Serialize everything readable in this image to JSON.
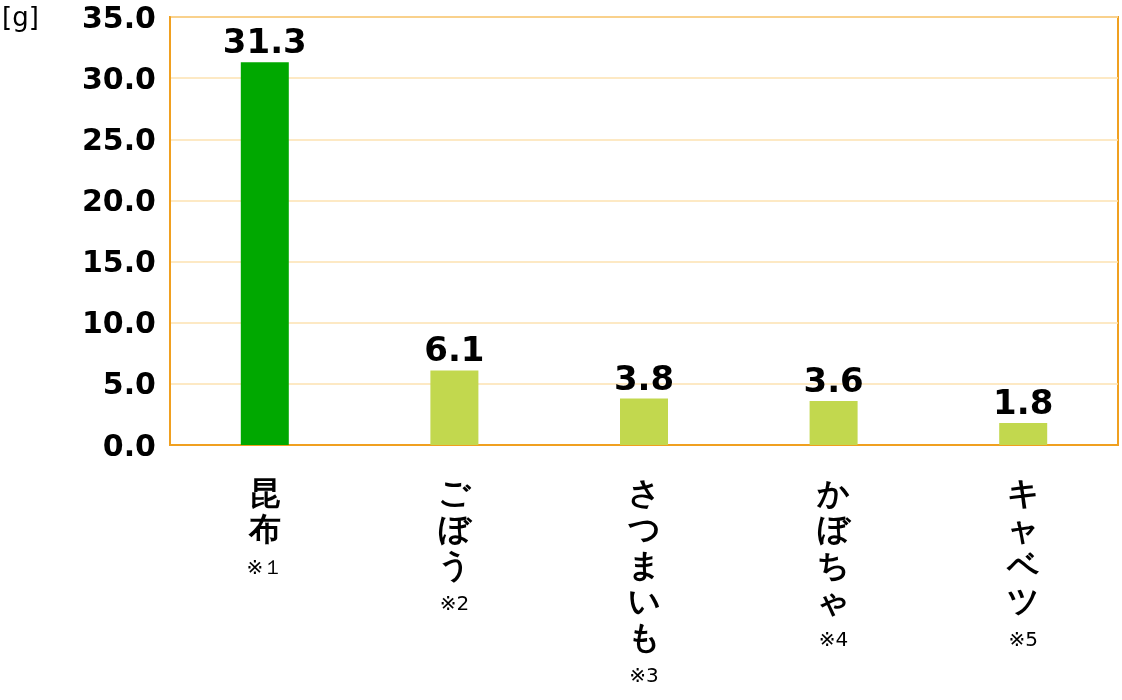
{
  "chart_data": {
    "type": "bar",
    "ylabel": "[g]",
    "categories": [
      "昆布\n※１",
      "ごぼう\n※2",
      "さつまいも\n※3",
      "かぼちゃ\n※4",
      "キャベツ\n※5"
    ],
    "values": [
      31.3,
      6.1,
      3.8,
      3.6,
      1.8
    ],
    "colors": [
      "#00a800",
      "#c2d84e",
      "#c2d84e",
      "#c2d84e",
      "#c2d84e"
    ],
    "ylim": [
      0,
      35
    ],
    "yticks": [
      {
        "value": 0,
        "label": "0.0"
      },
      {
        "value": 5,
        "label": "5.0"
      },
      {
        "value": 10,
        "label": "10.0"
      },
      {
        "value": 15,
        "label": "15.0"
      },
      {
        "value": 20,
        "label": "20.0"
      },
      {
        "value": 25,
        "label": "25.0"
      },
      {
        "value": 30,
        "label": "30.0"
      },
      {
        "value": 35,
        "label": "35.0"
      }
    ],
    "grid": "y",
    "data_labels": true
  }
}
